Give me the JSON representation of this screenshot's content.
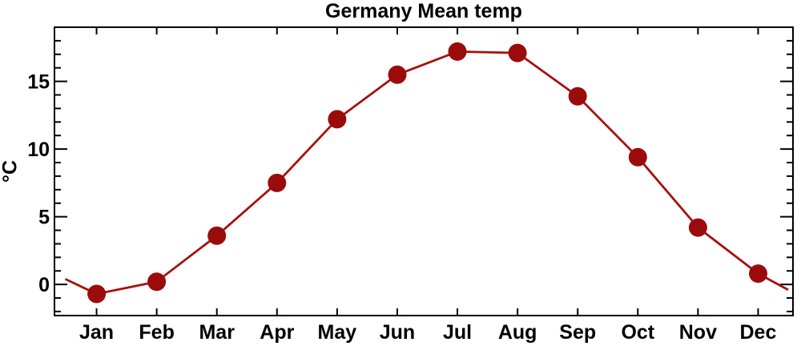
{
  "chart_data": {
    "type": "line",
    "title": "Germany Mean temp",
    "ylabel": "°C",
    "xlabel": "",
    "categories": [
      "Jan",
      "Feb",
      "Mar",
      "Apr",
      "May",
      "Jun",
      "Jul",
      "Aug",
      "Sep",
      "Oct",
      "Nov",
      "Dec"
    ],
    "x": [
      1,
      2,
      3,
      4,
      5,
      6,
      7,
      8,
      9,
      10,
      11,
      12
    ],
    "values": [
      -0.7,
      0.2,
      3.6,
      7.5,
      12.2,
      15.5,
      17.2,
      17.1,
      13.9,
      9.4,
      4.2,
      0.8
    ],
    "edge_line_points": [
      {
        "x": 0.48,
        "y": 0.4
      },
      {
        "x": 12.5,
        "y": -0.4
      }
    ],
    "xlim": [
      0.3,
      12.58
    ],
    "ylim": [
      -2.3,
      19.0
    ],
    "y_major_ticks": [
      0,
      5,
      10,
      15
    ],
    "y_tick_labels": [
      "0",
      "5",
      "10",
      "15"
    ],
    "y_minor_step": 1,
    "grid": false,
    "legend": false,
    "marker_style": "filled-circle",
    "colors": {
      "line": "#a81010",
      "marker": "#9a0b0b",
      "axis": "#000000",
      "text": "#000000",
      "background": "#ffffff"
    }
  }
}
